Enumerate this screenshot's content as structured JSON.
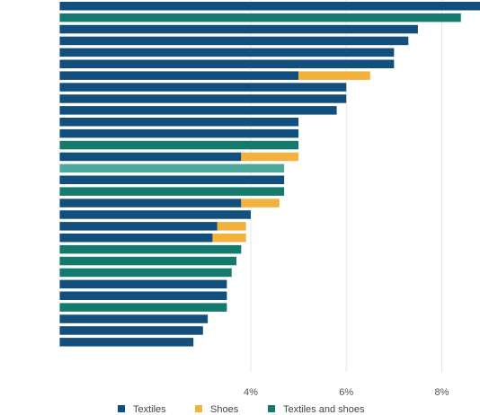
{
  "colors": {
    "textiles": "#134f7c",
    "shoes": "#f3b13e",
    "textiles_and_shoes": "#157a6e",
    "highlight": "#4ea99c",
    "grid": "#e6e6e6"
  },
  "chart_data": {
    "type": "bar",
    "orientation": "horizontal",
    "stacked": true,
    "grid": true,
    "legend_position": "bottom",
    "x_visible_range": [
      -1.25,
      8.8
    ],
    "x_ticks": [
      4,
      6,
      8
    ],
    "x_tick_labels": [
      "4%",
      "6%",
      "8%"
    ],
    "series": [
      {
        "key": "textiles",
        "name": "Textiles"
      },
      {
        "key": "shoes",
        "name": "Shoes"
      },
      {
        "key": "textiles_and_shoes",
        "name": "Textiles and shoes"
      }
    ],
    "bars": [
      {
        "textiles": 8.8
      },
      {
        "textiles_and_shoes": 8.4
      },
      {
        "textiles": 7.5
      },
      {
        "textiles": 7.3
      },
      {
        "textiles": 7.0
      },
      {
        "textiles": 7.0
      },
      {
        "textiles": 5.0,
        "shoes": 1.5
      },
      {
        "textiles": 6.0
      },
      {
        "textiles": 6.0
      },
      {
        "textiles": 5.8
      },
      {
        "textiles": 5.0
      },
      {
        "textiles": 5.0
      },
      {
        "textiles_and_shoes": 5.0
      },
      {
        "textiles": 3.8,
        "shoes": 1.2
      },
      {
        "textiles_and_shoes": 4.7,
        "highlight": true
      },
      {
        "textiles": 4.7
      },
      {
        "textiles_and_shoes": 4.7
      },
      {
        "textiles": 3.8,
        "shoes": 0.8
      },
      {
        "textiles": 4.0
      },
      {
        "textiles": 3.3,
        "shoes": 0.6
      },
      {
        "textiles": 3.2,
        "shoes": 0.7
      },
      {
        "textiles_and_shoes": 3.8
      },
      {
        "textiles_and_shoes": 3.7
      },
      {
        "textiles_and_shoes": 3.6
      },
      {
        "textiles": 3.5
      },
      {
        "textiles": 3.5
      },
      {
        "textiles_and_shoes": 3.5
      },
      {
        "textiles": 3.1
      },
      {
        "textiles": 3.0
      },
      {
        "textiles": 2.8
      }
    ]
  }
}
